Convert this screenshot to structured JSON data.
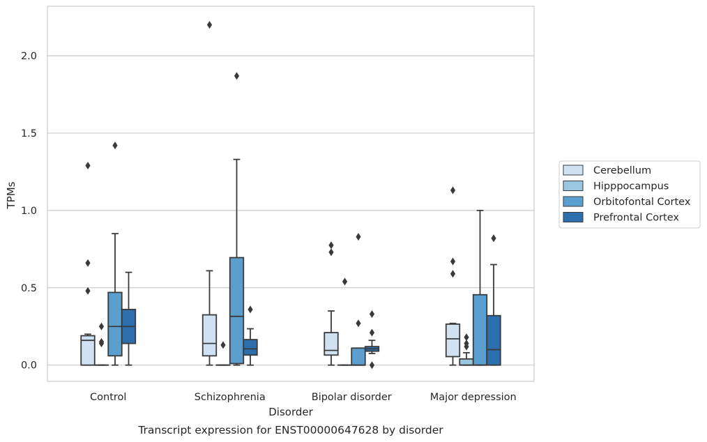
{
  "chart_data": {
    "type": "box",
    "caption": "Transcript expression for ENST00000647628 by disorder",
    "xlabel": "Disorder",
    "ylabel": "TPMs",
    "ylim": [
      -0.105,
      2.32
    ],
    "yticks": [
      0.0,
      0.5,
      1.0,
      1.5,
      2.0
    ],
    "ytick_labels": [
      "0.0",
      "0.5",
      "1.0",
      "1.5",
      "2.0"
    ],
    "grid": "horizontal",
    "legend_position": "right",
    "categories": [
      "Control",
      "Schizophrenia",
      "Bipolar disorder",
      "Major depression"
    ],
    "series": [
      {
        "name": "Cerebellum",
        "color": "#d0e1f1",
        "boxes": [
          {
            "min": 0.0,
            "q1": 0.0,
            "median": 0.16,
            "q3": 0.19,
            "max": 0.2,
            "outliers": [
              0.48,
              0.66,
              1.29
            ]
          },
          {
            "min": 0.0,
            "q1": 0.06,
            "median": 0.14,
            "q3": 0.325,
            "max": 0.61,
            "outliers": [
              2.2
            ]
          },
          {
            "min": 0.0,
            "q1": 0.065,
            "median": 0.095,
            "q3": 0.21,
            "max": 0.35,
            "outliers": [
              0.73,
              0.775
            ]
          },
          {
            "min": 0.0,
            "q1": 0.055,
            "median": 0.17,
            "q3": 0.265,
            "max": 0.27,
            "outliers": [
              0.59,
              0.67,
              1.13
            ]
          }
        ]
      },
      {
        "name": "Hipppocampus",
        "color": "#9ac7e0",
        "boxes": [
          {
            "min": 0.0,
            "q1": 0.0,
            "median": 0.0,
            "q3": 0.0,
            "max": 0.0,
            "outliers": [
              0.14,
              0.15,
              0.25
            ]
          },
          {
            "min": 0.0,
            "q1": 0.0,
            "median": 0.0,
            "q3": 0.0,
            "max": 0.0,
            "outliers": [
              0.13
            ]
          },
          {
            "min": 0.0,
            "q1": 0.0,
            "median": 0.0,
            "q3": 0.0,
            "max": 0.0,
            "outliers": [
              0.54
            ]
          },
          {
            "min": 0.0,
            "q1": 0.0,
            "median": 0.0,
            "q3": 0.04,
            "max": 0.08,
            "outliers": [
              0.12,
              0.14,
              0.18
            ]
          }
        ]
      },
      {
        "name": "Orbitofontal Cortex",
        "color": "#5b9fcf",
        "boxes": [
          {
            "min": 0.0,
            "q1": 0.06,
            "median": 0.25,
            "q3": 0.47,
            "max": 0.85,
            "outliers": [
              1.42
            ]
          },
          {
            "min": 0.0,
            "q1": 0.01,
            "median": 0.315,
            "q3": 0.695,
            "max": 1.33,
            "outliers": [
              1.87
            ]
          },
          {
            "min": 0.0,
            "q1": 0.0,
            "median": 0.0,
            "q3": 0.11,
            "max": 0.11,
            "outliers": [
              0.27,
              0.83
            ]
          },
          {
            "min": 0.0,
            "q1": 0.0,
            "median": 0.0,
            "q3": 0.455,
            "max": 1.0,
            "outliers": []
          }
        ]
      },
      {
        "name": "Prefrontal Cortex",
        "color": "#2c6fac",
        "boxes": [
          {
            "min": 0.0,
            "q1": 0.14,
            "median": 0.25,
            "q3": 0.36,
            "max": 0.6,
            "outliers": []
          },
          {
            "min": 0.0,
            "q1": 0.065,
            "median": 0.105,
            "q3": 0.165,
            "max": 0.235,
            "outliers": [
              0.36
            ]
          },
          {
            "min": 0.075,
            "q1": 0.09,
            "median": 0.105,
            "q3": 0.12,
            "max": 0.16,
            "outliers": [
              0.0,
              0.21,
              0.33
            ]
          },
          {
            "min": 0.0,
            "q1": 0.0,
            "median": 0.1,
            "q3": 0.32,
            "max": 0.65,
            "outliers": [
              0.82
            ]
          }
        ]
      }
    ]
  }
}
